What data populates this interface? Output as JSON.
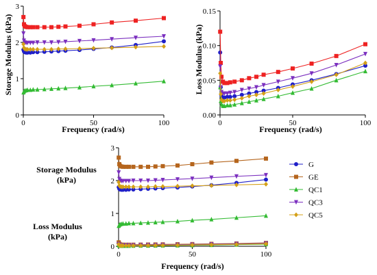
{
  "legend": [
    {
      "name": "G",
      "color": "#1f1fc8",
      "marker": "circle"
    },
    {
      "name": "GE",
      "color": "#b5651d",
      "marker": "square"
    },
    {
      "name": "QC1",
      "color": "#33bb33",
      "marker": "triangle-up"
    },
    {
      "name": "QC3",
      "color": "#7b2fbf",
      "marker": "triangle-down"
    },
    {
      "name": "QC5",
      "color": "#d4a017",
      "marker": "diamond"
    }
  ],
  "chart_data": [
    {
      "type": "line",
      "id": "storage",
      "xlabel": "Frequency (rad/s)",
      "ylabel": "Storage Modulus (kPa)",
      "xlim": [
        0,
        100
      ],
      "ylim": [
        0,
        3
      ],
      "xticks": [
        0,
        50,
        100
      ],
      "yticks": [
        0,
        1,
        2,
        3
      ],
      "x": [
        0.1,
        0.5,
        1,
        2,
        3,
        5,
        7,
        10,
        15,
        20,
        25,
        30,
        40,
        50,
        63,
        80,
        100
      ],
      "series": [
        {
          "name": "G",
          "color": "#1f1fc8",
          "marker": "circle",
          "values": [
            1.8,
            1.75,
            1.73,
            1.72,
            1.72,
            1.72,
            1.73,
            1.73,
            1.74,
            1.75,
            1.76,
            1.77,
            1.79,
            1.82,
            1.86,
            1.93,
            2.03
          ]
        },
        {
          "name": "GE",
          "color": "#ee2222",
          "marker": "square",
          "values": [
            2.7,
            2.5,
            2.45,
            2.43,
            2.42,
            2.42,
            2.42,
            2.42,
            2.42,
            2.42,
            2.43,
            2.44,
            2.46,
            2.5,
            2.55,
            2.6,
            2.67
          ]
        },
        {
          "name": "QC1",
          "color": "#33bb33",
          "marker": "triangle-up",
          "values": [
            0.62,
            0.65,
            0.67,
            0.68,
            0.69,
            0.69,
            0.7,
            0.7,
            0.71,
            0.72,
            0.73,
            0.74,
            0.76,
            0.79,
            0.82,
            0.87,
            0.93
          ]
        },
        {
          "name": "QC3",
          "color": "#7b2fbf",
          "marker": "triangle-down",
          "values": [
            2.25,
            2.05,
            2.0,
            1.99,
            1.99,
            1.99,
            1.99,
            2.0,
            2.0,
            2.0,
            2.01,
            2.02,
            2.04,
            2.06,
            2.09,
            2.13,
            2.17
          ]
        },
        {
          "name": "QC5",
          "color": "#d4a017",
          "marker": "diamond",
          "values": [
            1.95,
            1.85,
            1.82,
            1.81,
            1.81,
            1.81,
            1.81,
            1.81,
            1.81,
            1.81,
            1.82,
            1.82,
            1.83,
            1.84,
            1.85,
            1.87,
            1.89
          ]
        }
      ]
    },
    {
      "type": "line",
      "id": "loss",
      "xlabel": "Frequency (rad/s)",
      "ylabel": "Loss Modulus (kPa)",
      "xlim": [
        0,
        100
      ],
      "ylim": [
        0,
        0.15
      ],
      "xticks": [
        0,
        50,
        100
      ],
      "yticks": [
        0,
        0.05,
        0.1,
        0.15
      ],
      "ytick_labels": [
        "0.00",
        "0.05",
        "0.10",
        "0.15"
      ],
      "x": [
        0.1,
        0.5,
        1,
        2,
        3,
        5,
        7,
        10,
        15,
        20,
        25,
        30,
        40,
        50,
        63,
        80,
        100
      ],
      "series": [
        {
          "name": "G",
          "color": "#1f1fc8",
          "marker": "circle",
          "values": [
            0.09,
            0.04,
            0.028,
            0.025,
            0.025,
            0.026,
            0.026,
            0.027,
            0.029,
            0.031,
            0.033,
            0.035,
            0.039,
            0.044,
            0.05,
            0.059,
            0.071
          ]
        },
        {
          "name": "GE",
          "color": "#ee2222",
          "marker": "square",
          "values": [
            0.12,
            0.075,
            0.055,
            0.048,
            0.046,
            0.046,
            0.047,
            0.048,
            0.05,
            0.053,
            0.055,
            0.058,
            0.062,
            0.067,
            0.074,
            0.085,
            0.102
          ]
        },
        {
          "name": "QC1",
          "color": "#33bb33",
          "marker": "triangle-up",
          "values": [
            0.04,
            0.02,
            0.015,
            0.013,
            0.013,
            0.014,
            0.014,
            0.015,
            0.017,
            0.019,
            0.021,
            0.023,
            0.027,
            0.032,
            0.038,
            0.05,
            0.063
          ]
        },
        {
          "name": "QC3",
          "color": "#7b2fbf",
          "marker": "triangle-down",
          "values": [
            0.07,
            0.04,
            0.033,
            0.031,
            0.031,
            0.031,
            0.032,
            0.033,
            0.036,
            0.038,
            0.04,
            0.043,
            0.048,
            0.053,
            0.06,
            0.072,
            0.088
          ]
        },
        {
          "name": "QC5",
          "color": "#d4a017",
          "marker": "diamond",
          "values": [
            0.06,
            0.03,
            0.022,
            0.02,
            0.02,
            0.021,
            0.021,
            0.022,
            0.024,
            0.027,
            0.029,
            0.031,
            0.036,
            0.041,
            0.048,
            0.058,
            0.075
          ]
        }
      ]
    },
    {
      "type": "line",
      "id": "combined",
      "xlabel": "Frequency (rad/s)",
      "group_labels": [
        "Storage Modulus (kPa)",
        "Loss Modulus (kPa)"
      ],
      "xlim": [
        0,
        100
      ],
      "ylim": [
        0,
        3
      ],
      "xticks": [
        0,
        50,
        100
      ],
      "yticks": [
        0,
        1,
        2,
        3
      ],
      "x": [
        0.1,
        0.5,
        1,
        2,
        3,
        5,
        7,
        10,
        15,
        20,
        25,
        30,
        40,
        50,
        63,
        80,
        100
      ],
      "series": [
        {
          "name": "G",
          "color": "#1f1fc8",
          "marker": "circle",
          "values": [
            1.8,
            1.75,
            1.73,
            1.72,
            1.72,
            1.72,
            1.73,
            1.73,
            1.74,
            1.75,
            1.76,
            1.77,
            1.79,
            1.82,
            1.86,
            1.93,
            2.03
          ]
        },
        {
          "name": "GE",
          "color": "#b5651d",
          "marker": "square",
          "values": [
            2.7,
            2.5,
            2.45,
            2.43,
            2.42,
            2.42,
            2.42,
            2.42,
            2.42,
            2.42,
            2.43,
            2.44,
            2.46,
            2.5,
            2.55,
            2.6,
            2.67
          ]
        },
        {
          "name": "QC1",
          "color": "#33bb33",
          "marker": "triangle-up",
          "values": [
            0.62,
            0.65,
            0.67,
            0.68,
            0.69,
            0.69,
            0.7,
            0.7,
            0.71,
            0.72,
            0.73,
            0.74,
            0.76,
            0.79,
            0.82,
            0.87,
            0.93
          ]
        },
        {
          "name": "QC3",
          "color": "#7b2fbf",
          "marker": "triangle-down",
          "values": [
            2.25,
            2.05,
            2.0,
            1.99,
            1.99,
            1.99,
            1.99,
            2.0,
            2.0,
            2.0,
            2.01,
            2.02,
            2.04,
            2.06,
            2.09,
            2.13,
            2.17
          ]
        },
        {
          "name": "QC5",
          "color": "#d4a017",
          "marker": "diamond",
          "values": [
            1.95,
            1.85,
            1.82,
            1.81,
            1.81,
            1.81,
            1.81,
            1.81,
            1.81,
            1.81,
            1.82,
            1.82,
            1.83,
            1.84,
            1.85,
            1.87,
            1.89
          ]
        },
        {
          "name": "G",
          "color": "#1f1fc8",
          "marker": "circle",
          "values": [
            0.09,
            0.04,
            0.028,
            0.025,
            0.025,
            0.026,
            0.026,
            0.027,
            0.029,
            0.031,
            0.033,
            0.035,
            0.039,
            0.044,
            0.05,
            0.059,
            0.071
          ]
        },
        {
          "name": "GE",
          "color": "#b5651d",
          "marker": "square",
          "values": [
            0.12,
            0.075,
            0.055,
            0.048,
            0.046,
            0.046,
            0.047,
            0.048,
            0.05,
            0.053,
            0.055,
            0.058,
            0.062,
            0.067,
            0.074,
            0.085,
            0.102
          ]
        },
        {
          "name": "QC1",
          "color": "#33bb33",
          "marker": "triangle-up",
          "values": [
            0.04,
            0.02,
            0.015,
            0.013,
            0.013,
            0.014,
            0.014,
            0.015,
            0.017,
            0.019,
            0.021,
            0.023,
            0.027,
            0.032,
            0.038,
            0.05,
            0.063
          ]
        },
        {
          "name": "QC3",
          "color": "#7b2fbf",
          "marker": "triangle-down",
          "values": [
            0.07,
            0.04,
            0.033,
            0.031,
            0.031,
            0.031,
            0.032,
            0.033,
            0.036,
            0.038,
            0.04,
            0.043,
            0.048,
            0.053,
            0.06,
            0.072,
            0.088
          ]
        },
        {
          "name": "QC5",
          "color": "#d4a017",
          "marker": "diamond",
          "values": [
            0.06,
            0.03,
            0.022,
            0.02,
            0.02,
            0.021,
            0.021,
            0.022,
            0.024,
            0.027,
            0.029,
            0.031,
            0.036,
            0.041,
            0.048,
            0.058,
            0.075
          ]
        }
      ]
    }
  ]
}
